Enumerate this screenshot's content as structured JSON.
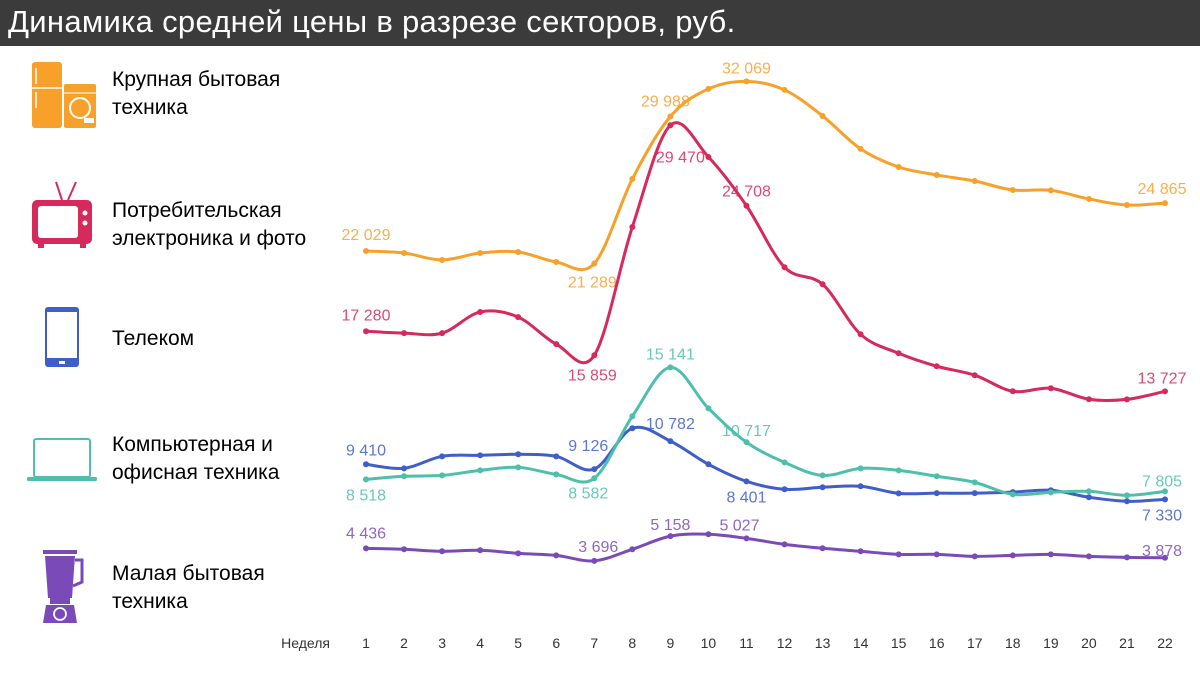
{
  "header": {
    "title": "Динамика средней цены в разрезе секторов, руб."
  },
  "chart_data": {
    "type": "line",
    "title": "Динамика средней цены в разрезе секторов, руб.",
    "xlabel": "Неделя",
    "ylabel": "",
    "grid": false,
    "legend_placement": "left",
    "x": [
      1,
      2,
      3,
      4,
      5,
      6,
      7,
      8,
      9,
      10,
      11,
      12,
      13,
      14,
      15,
      16,
      17,
      18,
      19,
      20,
      21,
      22
    ],
    "series": [
      {
        "name": "Крупная бытовая техника",
        "icon": "fridge-washer-icon",
        "color": "#f7a12b",
        "values": [
          22029,
          21910,
          21500,
          21910,
          21970,
          21380,
          21289,
          26290,
          29988,
          31620,
          32069,
          31560,
          30020,
          28070,
          27000,
          26530,
          26170,
          25640,
          25620,
          25110,
          24750,
          24865
        ],
        "labels": [
          {
            "week": 1,
            "text": "22 029"
          },
          {
            "week": 7,
            "text": "21 289"
          },
          {
            "week": 9,
            "text": "29 988"
          },
          {
            "week": 11,
            "text": "32 069"
          },
          {
            "week": 22,
            "text": "24 865"
          }
        ]
      },
      {
        "name": "Потребительская электроника и фото",
        "icon": "tv-icon",
        "color": "#d6295c",
        "values": [
          17280,
          17170,
          17170,
          18420,
          18120,
          16520,
          15859,
          23450,
          29470,
          27590,
          24708,
          21070,
          20060,
          17100,
          15980,
          15210,
          14680,
          13730,
          13910,
          13260,
          13250,
          13727
        ],
        "labels": [
          {
            "week": 1,
            "text": "17 280"
          },
          {
            "week": 7,
            "text": "15 859"
          },
          {
            "week": 9,
            "text": "29 470"
          },
          {
            "week": 11,
            "text": "24 708"
          },
          {
            "week": 22,
            "text": "13 727"
          }
        ]
      },
      {
        "name": "Телеком",
        "icon": "smartphone-icon",
        "color": "#3f5ec9",
        "values": [
          9410,
          9170,
          9880,
          9940,
          10000,
          9880,
          9126,
          11540,
          10782,
          9410,
          8401,
          7930,
          8050,
          8110,
          7690,
          7700,
          7700,
          7760,
          7870,
          7460,
          7220,
          7330
        ],
        "labels": [
          {
            "week": 1,
            "text": "9 410"
          },
          {
            "week": 7,
            "text": "9 126"
          },
          {
            "week": 9,
            "text": "10 782"
          },
          {
            "week": 11,
            "text": "8 401"
          },
          {
            "week": 22,
            "text": "7 330"
          }
        ]
      },
      {
        "name": "Компьютерная и офисная техника",
        "icon": "laptop-icon",
        "color": "#4dbfaa",
        "values": [
          8518,
          8700,
          8750,
          9050,
          9230,
          8810,
          8582,
          12250,
          15141,
          12720,
          10717,
          9520,
          8750,
          9170,
          9050,
          8700,
          8340,
          7630,
          7750,
          7810,
          7570,
          7805
        ],
        "labels": [
          {
            "week": 1,
            "text": "8 518"
          },
          {
            "week": 7,
            "text": "8 582"
          },
          {
            "week": 9,
            "text": "15 141"
          },
          {
            "week": 11,
            "text": "10 717"
          },
          {
            "week": 22,
            "text": "7 805"
          }
        ]
      },
      {
        "name": "Малая бытовая техника",
        "icon": "blender-icon",
        "color": "#7a4bb8",
        "values": [
          4436,
          4380,
          4260,
          4320,
          4140,
          4020,
          3696,
          4380,
          5158,
          5270,
          5027,
          4670,
          4440,
          4260,
          4080,
          4080,
          3960,
          4020,
          4080,
          3960,
          3900,
          3878
        ],
        "labels": [
          {
            "week": 1,
            "text": "4 436"
          },
          {
            "week": 7,
            "text": "3 696"
          },
          {
            "week": 9,
            "text": "5 158"
          },
          {
            "week": 11,
            "text": "5 027"
          },
          {
            "week": 22,
            "text": "3 878"
          }
        ]
      }
    ]
  },
  "legend": [
    {
      "label": "Крупная бытовая\nтехника",
      "icon": "fridge-washer-icon",
      "color": "#f7a12b"
    },
    {
      "label": "Потребительская\nэлектроника и фото",
      "icon": "tv-icon",
      "color": "#d6295c"
    },
    {
      "label": "Телеком",
      "icon": "smartphone-icon",
      "color": "#3f5ec9"
    },
    {
      "label": "Компьютерная и\nофисная техника",
      "icon": "laptop-icon",
      "color": "#4dbfaa"
    },
    {
      "label": "Малая бытовая\nтехника",
      "icon": "blender-icon",
      "color": "#7a4bb8"
    }
  ]
}
